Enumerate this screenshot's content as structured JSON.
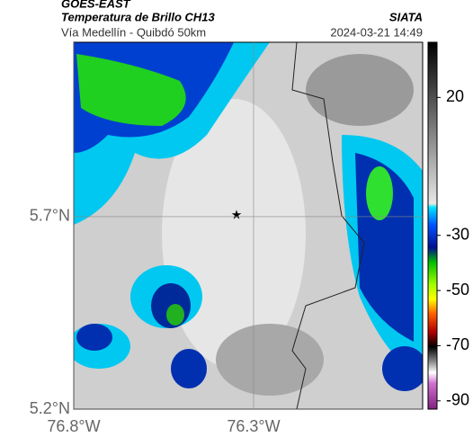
{
  "header": {
    "title": "GOES-EAST",
    "subtitle": "Temperatura de Brillo CH13",
    "route": "Vía Medellín - Quibdó 50km",
    "source": "SIATA",
    "timestamp": "2024-03-21 14:49"
  },
  "map": {
    "lonlim": [
      -76.8,
      -75.83
    ],
    "latlim": [
      5.2,
      6.153
    ],
    "lat_ticks": [
      {
        "value": 5.7,
        "label": "5.7°N"
      },
      {
        "value": 5.2,
        "label": "5.2°N"
      }
    ],
    "lon_ticks": [
      {
        "value": -76.8,
        "label": "76.8°W"
      },
      {
        "value": -76.3,
        "label": "76.3°W"
      }
    ]
  },
  "colorbar": {
    "lim": [
      -93,
      40
    ],
    "ticks": [
      20,
      -30,
      -50,
      -70,
      -90
    ]
  }
}
